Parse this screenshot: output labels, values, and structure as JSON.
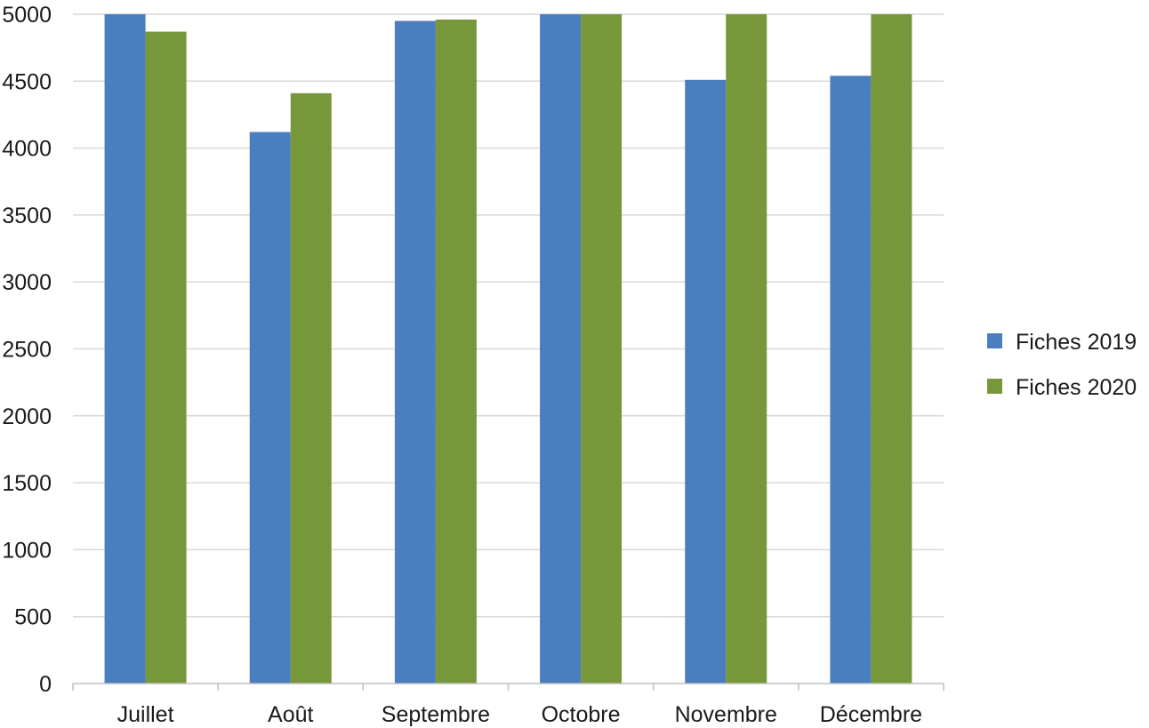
{
  "chart_data": {
    "type": "bar",
    "categories": [
      "Juillet",
      "Août",
      "Septembre",
      "Octobre",
      "Novembre",
      "Décembre"
    ],
    "series": [
      {
        "name": "Fiches 2019",
        "values": [
          5000,
          4120,
          4950,
          5000,
          4510,
          4540
        ],
        "color": "#4a7ebf"
      },
      {
        "name": "Fiches 2020",
        "values": [
          4870,
          4410,
          4960,
          5000,
          5000,
          5000
        ],
        "color": "#77973b"
      }
    ],
    "ylim": [
      0,
      5000
    ],
    "yticks": [
      0,
      500,
      1000,
      1500,
      2000,
      2500,
      3000,
      3500,
      4000,
      4500,
      5000
    ],
    "grid": true,
    "gridline_color": "#d9d9d9",
    "axis_color": "#bfbfbf",
    "legend_position": "right",
    "title": "",
    "xlabel": "",
    "ylabel": ""
  }
}
